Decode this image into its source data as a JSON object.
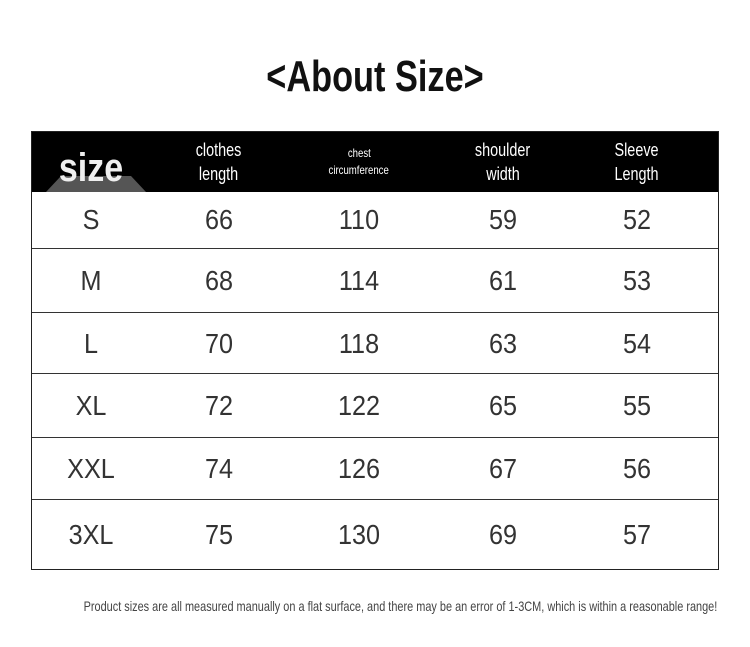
{
  "title": "<About Size>",
  "headers": {
    "size": "size",
    "clothes_length": [
      "clothes",
      "length"
    ],
    "chest": [
      "chest",
      "circumference"
    ],
    "shoulder": [
      "shoulder",
      "width"
    ],
    "sleeve": [
      "Sleeve",
      "Length"
    ]
  },
  "rows": [
    {
      "size": "S",
      "clothes_length": "66",
      "chest": "110",
      "shoulder": "59",
      "sleeve": "52"
    },
    {
      "size": "M",
      "clothes_length": "68",
      "chest": "114",
      "shoulder": "61",
      "sleeve": "53"
    },
    {
      "size": "L",
      "clothes_length": "70",
      "chest": "118",
      "shoulder": "63",
      "sleeve": "54"
    },
    {
      "size": "XL",
      "clothes_length": "72",
      "chest": "122",
      "shoulder": "65",
      "sleeve": "55"
    },
    {
      "size": "XXL",
      "clothes_length": "74",
      "chest": "126",
      "shoulder": "67",
      "sleeve": "56"
    },
    {
      "size": "3XL",
      "clothes_length": "75",
      "chest": "130",
      "shoulder": "69",
      "sleeve": "57"
    }
  ],
  "note": "Product sizes are all measured manually on a flat surface, and there may be an error of 1-3CM, which is within a reasonable range!"
}
